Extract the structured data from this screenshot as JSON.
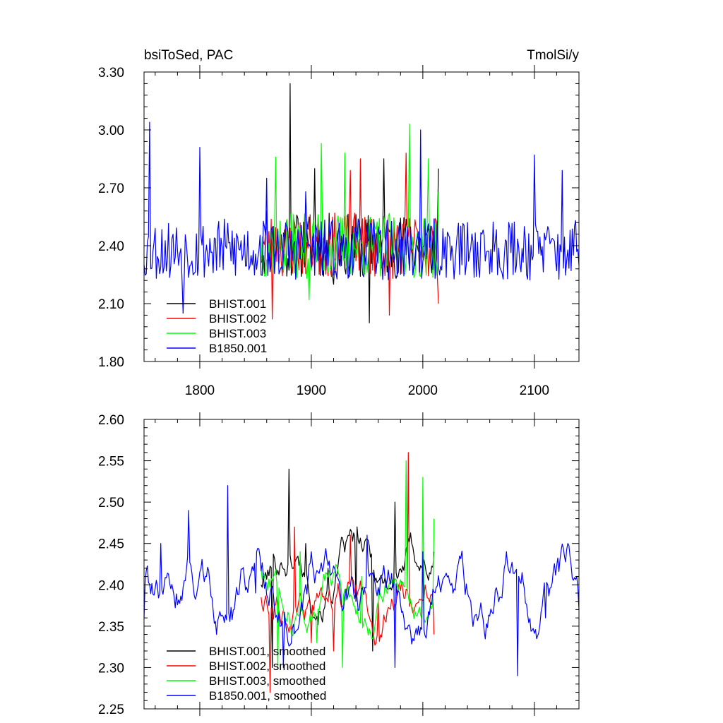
{
  "chart_data": [
    {
      "type": "line",
      "title_left": "bsiToSed, PAC",
      "title_right": "TmolSi/y",
      "xlim": [
        1750,
        2140
      ],
      "ylim": [
        1.8,
        3.3
      ],
      "yticks": [
        "1.80",
        "2.10",
        "2.40",
        "2.70",
        "3.00",
        "3.30"
      ],
      "xticks": [
        "1800",
        "1900",
        "2000",
        "2100"
      ],
      "legend_position": "bottom-left",
      "series": [
        {
          "name": "BHIST.001",
          "color": "#000000",
          "start_year": 1855,
          "end_year": 2014,
          "mean": 2.4,
          "spread": 0.17,
          "amp": 0.0,
          "seed": 11,
          "x": [
            1860,
            1881,
            1888,
            1903,
            1920,
            1952,
            1965,
            1984,
            2014
          ],
          "y": [
            2.58,
            3.24,
            2.54,
            2.8,
            2.2,
            2.0,
            2.85,
            2.44,
            2.8
          ]
        },
        {
          "name": "BHIST.002",
          "color": "#ff0000",
          "start_year": 1855,
          "end_year": 2014,
          "mean": 2.4,
          "spread": 0.17,
          "amp": 0.0,
          "seed": 23,
          "x": [
            1865,
            1870,
            1935,
            1944,
            1970,
            1985,
            2014
          ],
          "y": [
            2.02,
            2.48,
            2.79,
            2.85,
            2.04,
            2.88,
            2.1
          ]
        },
        {
          "name": "BHIST.003",
          "color": "#00ff00",
          "start_year": 1855,
          "end_year": 2014,
          "mean": 2.4,
          "spread": 0.17,
          "amp": 0.0,
          "seed": 37,
          "x": [
            1868,
            1898,
            1909,
            1930,
            1988,
            2005,
            2014
          ],
          "y": [
            2.86,
            2.12,
            2.93,
            2.88,
            3.03,
            2.85,
            2.68
          ]
        },
        {
          "name": "B1850.001",
          "color": "#0000ff",
          "start_year": 1750,
          "end_year": 2140,
          "mean": 2.38,
          "spread": 0.16,
          "amp": 0.0,
          "seed": 53,
          "x": [
            1755,
            1785,
            1800,
            1860,
            1895,
            1998,
            2100,
            2125
          ],
          "y": [
            3.04,
            2.05,
            2.91,
            2.75,
            2.68,
            3.0,
            2.87,
            2.79
          ]
        }
      ]
    },
    {
      "type": "line",
      "xlim": [
        1750,
        2140
      ],
      "ylim": [
        2.25,
        2.6
      ],
      "yticks": [
        "2.25",
        "2.30",
        "2.35",
        "2.40",
        "2.45",
        "2.50",
        "2.55",
        "2.60"
      ],
      "legend_position": "bottom-left",
      "series": [
        {
          "name": "BHIST.001, smoothed",
          "color": "#000000",
          "start_year": 1855,
          "end_year": 2010,
          "mean": 2.42,
          "spread": 0.028,
          "amp": 0.018,
          "seed": 101,
          "x": [
            1855,
            1865,
            1880,
            1895,
            1915,
            1940,
            1955,
            1975,
            1990,
            2010
          ],
          "y": [
            2.4,
            2.3,
            2.54,
            2.45,
            2.42,
            2.38,
            2.32,
            2.5,
            2.45,
            2.44
          ]
        },
        {
          "name": "BHIST.002, smoothed",
          "color": "#ff0000",
          "start_year": 1855,
          "end_year": 2010,
          "mean": 2.38,
          "spread": 0.028,
          "amp": 0.018,
          "seed": 113,
          "x": [
            1855,
            1863,
            1885,
            1900,
            1920,
            1935,
            1960,
            1987,
            2002,
            2010
          ],
          "y": [
            2.385,
            2.27,
            2.47,
            2.33,
            2.32,
            2.46,
            2.38,
            2.56,
            2.4,
            2.34
          ]
        },
        {
          "name": "BHIST.003, smoothed",
          "color": "#00ff00",
          "start_year": 1855,
          "end_year": 2010,
          "mean": 2.39,
          "spread": 0.028,
          "amp": 0.018,
          "seed": 127,
          "x": [
            1855,
            1870,
            1890,
            1905,
            1928,
            1945,
            1960,
            1985,
            2000,
            2010
          ],
          "y": [
            2.42,
            2.3,
            2.44,
            2.33,
            2.3,
            2.41,
            2.38,
            2.55,
            2.53,
            2.48
          ]
        },
        {
          "name": "B1850.001, smoothed",
          "color": "#0000ff",
          "start_year": 1750,
          "end_year": 2140,
          "mean": 2.39,
          "spread": 0.035,
          "amp": 0.025,
          "seed": 139,
          "x": [
            1750,
            1765,
            1790,
            1815,
            1825,
            1850,
            1875,
            1900,
            1950,
            1975,
            2000,
            2040,
            2075,
            2085,
            2110,
            2130,
            2140
          ],
          "y": [
            2.36,
            2.45,
            2.49,
            2.34,
            2.52,
            2.39,
            2.3,
            2.44,
            2.46,
            2.3,
            2.44,
            2.39,
            2.44,
            2.29,
            2.36,
            2.45,
            2.37
          ]
        }
      ]
    }
  ]
}
